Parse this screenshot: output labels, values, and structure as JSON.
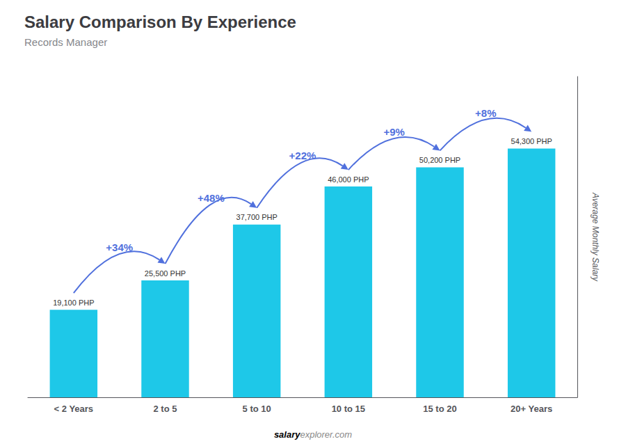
{
  "chart_data": {
    "type": "bar",
    "title": "Salary Comparison By Experience",
    "subtitle": "Records Manager",
    "ylabel": "Average Monthly Salary",
    "watermark": [
      "salary",
      "explorer.com"
    ],
    "categories": [
      "< 2 Years",
      "2 to 5",
      "5 to 10",
      "10 to 15",
      "15 to 20",
      "20+ Years"
    ],
    "values": [
      19100,
      25500,
      37700,
      46000,
      50200,
      54300
    ],
    "value_labels": [
      "19,100 PHP",
      "25,500 PHP",
      "37,700 PHP",
      "46,000 PHP",
      "50,200 PHP",
      "54,300 PHP"
    ],
    "data_labels": true,
    "annotations": [
      {
        "text": "+34%",
        "from": "< 2 Years",
        "to": "2 to 5"
      },
      {
        "text": "+48%",
        "from": "2 to 5",
        "to": "5 to 10"
      },
      {
        "text": "+22%",
        "from": "5 to 10",
        "to": "10 to 15"
      },
      {
        "text": "+9%",
        "from": "10 to 15",
        "to": "15 to 20"
      },
      {
        "text": "+8%",
        "from": "15 to 20",
        "to": "20+ Years"
      }
    ],
    "color": "#1ec8e8",
    "ylim": [
      0,
      70000
    ],
    "tick_labels": "x",
    "grid": false
  }
}
